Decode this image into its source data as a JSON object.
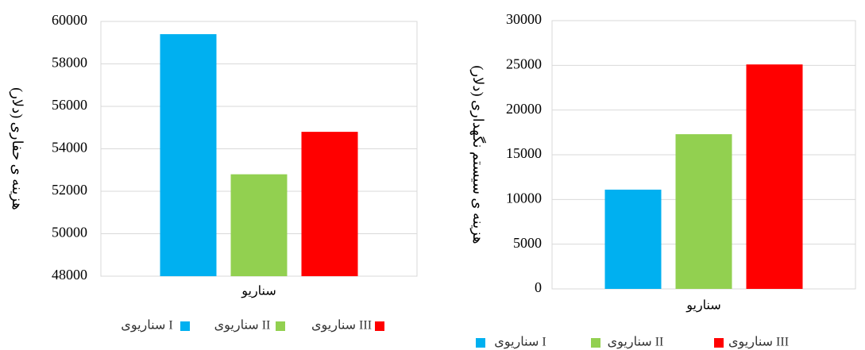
{
  "chart_data": [
    {
      "type": "bar",
      "ylabel": "هزینه ی حفاری (دلار)",
      "categories": [
        "سناریو"
      ],
      "series": [
        {
          "name": "سناریوی I",
          "color": "#00b0f0",
          "values": [
            59400
          ]
        },
        {
          "name": "سناریوی II",
          "color": "#92d050",
          "values": [
            52800
          ]
        },
        {
          "name": "سناریوی III",
          "color": "#ff0000",
          "values": [
            54800
          ]
        }
      ],
      "ylim": [
        48000,
        60000
      ],
      "yticks": [
        48000,
        50000,
        52000,
        54000,
        56000,
        58000,
        60000
      ],
      "grid": true
    },
    {
      "type": "bar",
      "ylabel": "هزینه ی سیستم نگهداری (دلار)",
      "categories": [
        "سناریو"
      ],
      "series": [
        {
          "name": "سناریوی I",
          "color": "#00b0f0",
          "values": [
            11100
          ]
        },
        {
          "name": "سناریوی II",
          "color": "#92d050",
          "values": [
            17300
          ]
        },
        {
          "name": "سناریوی III",
          "color": "#ff0000",
          "values": [
            25100
          ]
        }
      ],
      "ylim": [
        0,
        30000
      ],
      "yticks": [
        0,
        5000,
        10000,
        15000,
        20000,
        25000,
        30000
      ],
      "grid": true
    }
  ]
}
